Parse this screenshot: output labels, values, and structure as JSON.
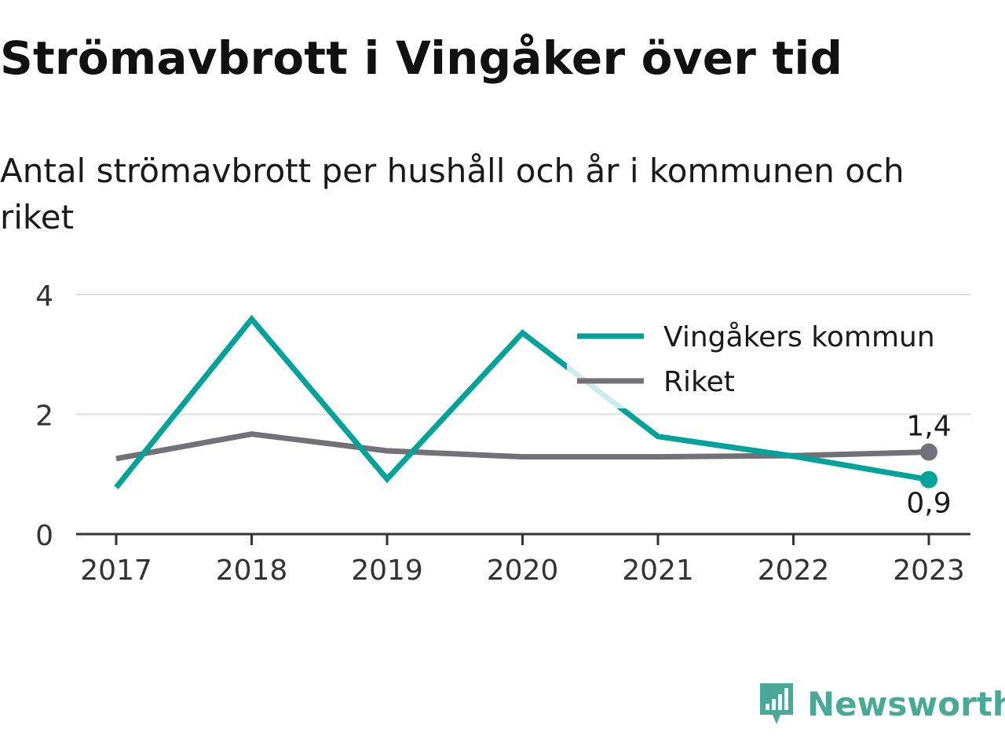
{
  "title": "Strömavbrott i Vingåker över tid",
  "subtitle": "Antal strömavbrott per hushåll och år i kommunen och riket",
  "brand": "Newsworthy",
  "colors": {
    "accent": "#00a399",
    "national": "#727178",
    "grid": "#dddddd",
    "axis": "#333333",
    "brand": "#4aa896"
  },
  "chart_data": {
    "type": "line",
    "x": [
      "2017",
      "2018",
      "2019",
      "2020",
      "2021",
      "2022",
      "2023"
    ],
    "ylim": [
      0,
      4
    ],
    "yticks": [
      "0",
      "2",
      "4"
    ],
    "grid": true,
    "legend_position": "top-right",
    "series": [
      {
        "name": "Vingåkers kommun",
        "color": "#00a399",
        "values": [
          0.78,
          3.59,
          0.92,
          3.36,
          1.63,
          1.3,
          0.91
        ],
        "end_label": "0,9"
      },
      {
        "name": "Riket",
        "color": "#727178",
        "values": [
          1.26,
          1.67,
          1.39,
          1.29,
          1.29,
          1.31,
          1.37
        ],
        "end_label": "1,4"
      }
    ]
  }
}
